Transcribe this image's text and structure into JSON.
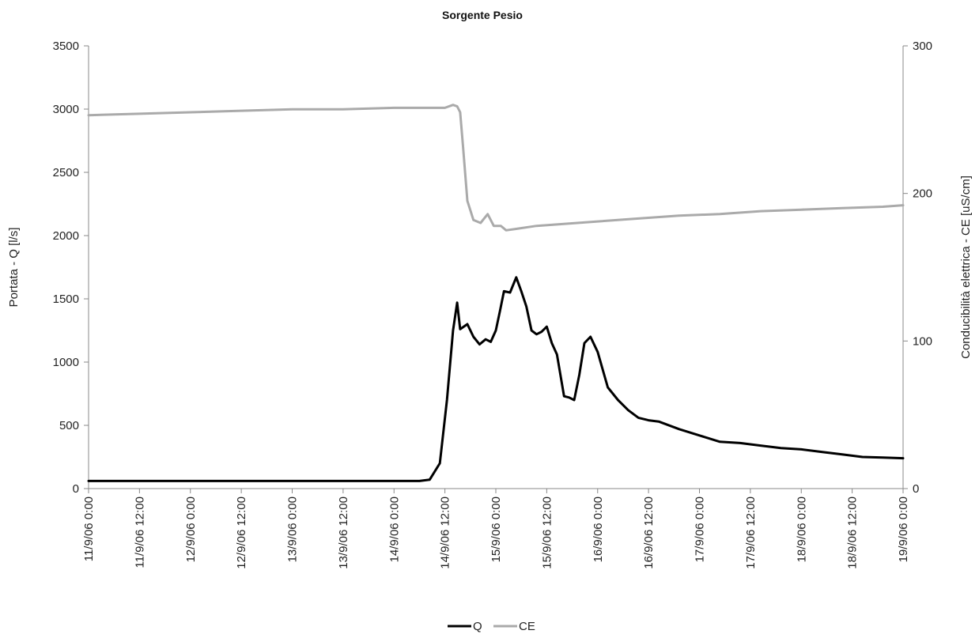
{
  "chart_data": {
    "type": "line",
    "title": "Sorgente Pesio",
    "ylabel": "Portata - Q [l/s]",
    "y2label": "Conducibilità elettrica - CE [uS/cm]",
    "ylim": [
      0,
      3500
    ],
    "y2lim": [
      0,
      300
    ],
    "yticks": [
      0,
      500,
      1000,
      1500,
      2000,
      2500,
      3000,
      3500
    ],
    "y2ticks": [
      0,
      100,
      200,
      300
    ],
    "xlim": [
      0,
      8
    ],
    "xtick_labels": [
      "11/9/06 0:00",
      "11/9/06 12:00",
      "12/9/06 0:00",
      "12/9/06 12:00",
      "13/9/06 0:00",
      "13/9/06 12:00",
      "14/9/06 0:00",
      "14/9/06 12:00",
      "15/9/06 0:00",
      "15/9/06 12:00",
      "16/9/06 0:00",
      "16/9/06 12:00",
      "17/9/06 0:00",
      "17/9/06 12:00",
      "18/9/06 0:00",
      "18/9/06 12:00",
      "19/9/06 0:00"
    ],
    "legend_position": "bottom",
    "grid": false,
    "series": [
      {
        "name": "Q",
        "axis": "left",
        "color": "#000000",
        "x": [
          0,
          0.5,
          1,
          1.5,
          2,
          2.5,
          3,
          3.25,
          3.35,
          3.45,
          3.52,
          3.58,
          3.62,
          3.65,
          3.72,
          3.78,
          3.84,
          3.9,
          3.95,
          4.0,
          4.04,
          4.08,
          4.14,
          4.2,
          4.25,
          4.3,
          4.35,
          4.4,
          4.45,
          4.5,
          4.55,
          4.6,
          4.67,
          4.72,
          4.77,
          4.82,
          4.87,
          4.93,
          5.0,
          5.1,
          5.2,
          5.3,
          5.4,
          5.5,
          5.6,
          5.8,
          6.0,
          6.2,
          6.4,
          6.6,
          6.8,
          7.0,
          7.2,
          7.4,
          7.6,
          7.8,
          8.0
        ],
        "values": [
          60,
          60,
          60,
          60,
          60,
          60,
          60,
          60,
          70,
          200,
          700,
          1250,
          1470,
          1260,
          1300,
          1200,
          1140,
          1180,
          1160,
          1250,
          1400,
          1560,
          1550,
          1670,
          1560,
          1440,
          1250,
          1220,
          1240,
          1280,
          1150,
          1060,
          730,
          720,
          700,
          900,
          1150,
          1200,
          1080,
          800,
          700,
          620,
          560,
          540,
          530,
          470,
          420,
          370,
          360,
          340,
          320,
          310,
          290,
          270,
          250,
          245,
          240
        ]
      },
      {
        "name": "CE",
        "axis": "right",
        "color": "#aaaaaa",
        "x": [
          0,
          0.5,
          1,
          1.5,
          2,
          2.5,
          3,
          3.25,
          3.4,
          3.5,
          3.58,
          3.62,
          3.65,
          3.68,
          3.72,
          3.78,
          3.85,
          3.92,
          3.98,
          4.05,
          4.1,
          4.2,
          4.4,
          4.6,
          4.8,
          5.0,
          5.4,
          5.8,
          6.2,
          6.6,
          7.0,
          7.4,
          7.8,
          8.0
        ],
        "values": [
          253,
          254,
          255,
          256,
          257,
          257,
          258,
          258,
          258,
          258,
          260,
          259,
          255,
          230,
          195,
          182,
          180,
          186,
          178,
          178,
          175,
          176,
          178,
          179,
          180,
          181,
          183,
          185,
          186,
          188,
          189,
          190,
          191,
          192
        ]
      }
    ]
  }
}
